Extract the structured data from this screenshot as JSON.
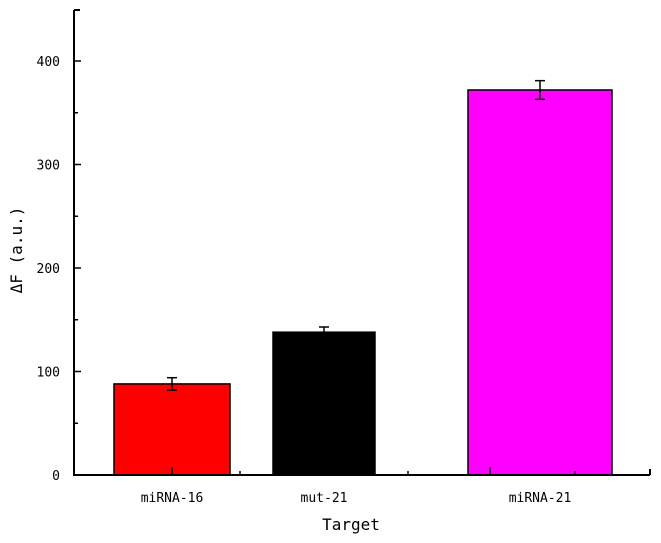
{
  "chart_data": {
    "type": "bar",
    "title": "",
    "xlabel": "Target",
    "ylabel": "ΔF (a.u.)",
    "categories": [
      "miRNA-16",
      "mut-21",
      "miRNA-21"
    ],
    "values": [
      88,
      138,
      372
    ],
    "errors": [
      6,
      5,
      9
    ],
    "colors": [
      "#ff0000",
      "#000000",
      "#ff00ff"
    ],
    "ylim": [
      0,
      450
    ],
    "yticks": [
      0,
      100,
      200,
      300,
      400
    ],
    "yminor_ticks": [
      50,
      150,
      250,
      350
    ],
    "grid": false,
    "legend": null
  }
}
